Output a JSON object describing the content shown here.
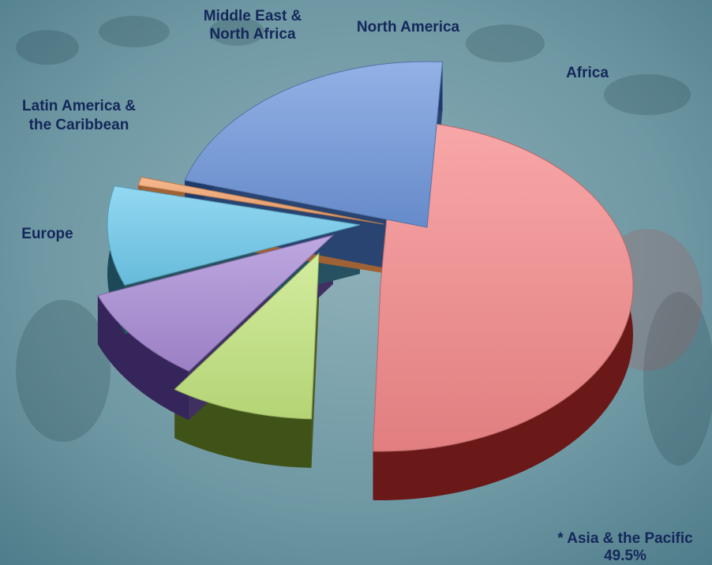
{
  "chart_data": {
    "type": "pie",
    "title": "",
    "categories": [
      "* Asia & the Pacific 49.5%",
      "Europe",
      "Latin America & the Caribbean",
      "Middle East & North Africa",
      "North America",
      "Africa"
    ],
    "values": [
      49.5,
      9.2,
      9.4,
      9.7,
      0.8,
      21.4
    ],
    "labels": [
      {
        "lines": [
          "* Asia & the Pacific",
          "49.5%"
        ]
      },
      {
        "lines": [
          "Europe"
        ]
      },
      {
        "lines": [
          "Latin America &",
          "the Caribbean"
        ]
      },
      {
        "lines": [
          "Middle East &",
          "North Africa"
        ]
      },
      {
        "lines": [
          "North America"
        ]
      },
      {
        "lines": [
          "Africa"
        ]
      }
    ],
    "colors": [
      "#f5898b",
      "#c4e67f",
      "#a88bd6",
      "#6fcbed",
      "#f3a26a",
      "#6f97dc"
    ],
    "side_colors": [
      "#6a1818",
      "#3f5218",
      "#35255a",
      "#1c4858",
      "#9a5a2a",
      "#1e3a6a"
    ],
    "exploded": true,
    "three_d": true,
    "legend": "none",
    "background": "photograph of graduates in caps and gowns, washed in a teal tint"
  }
}
